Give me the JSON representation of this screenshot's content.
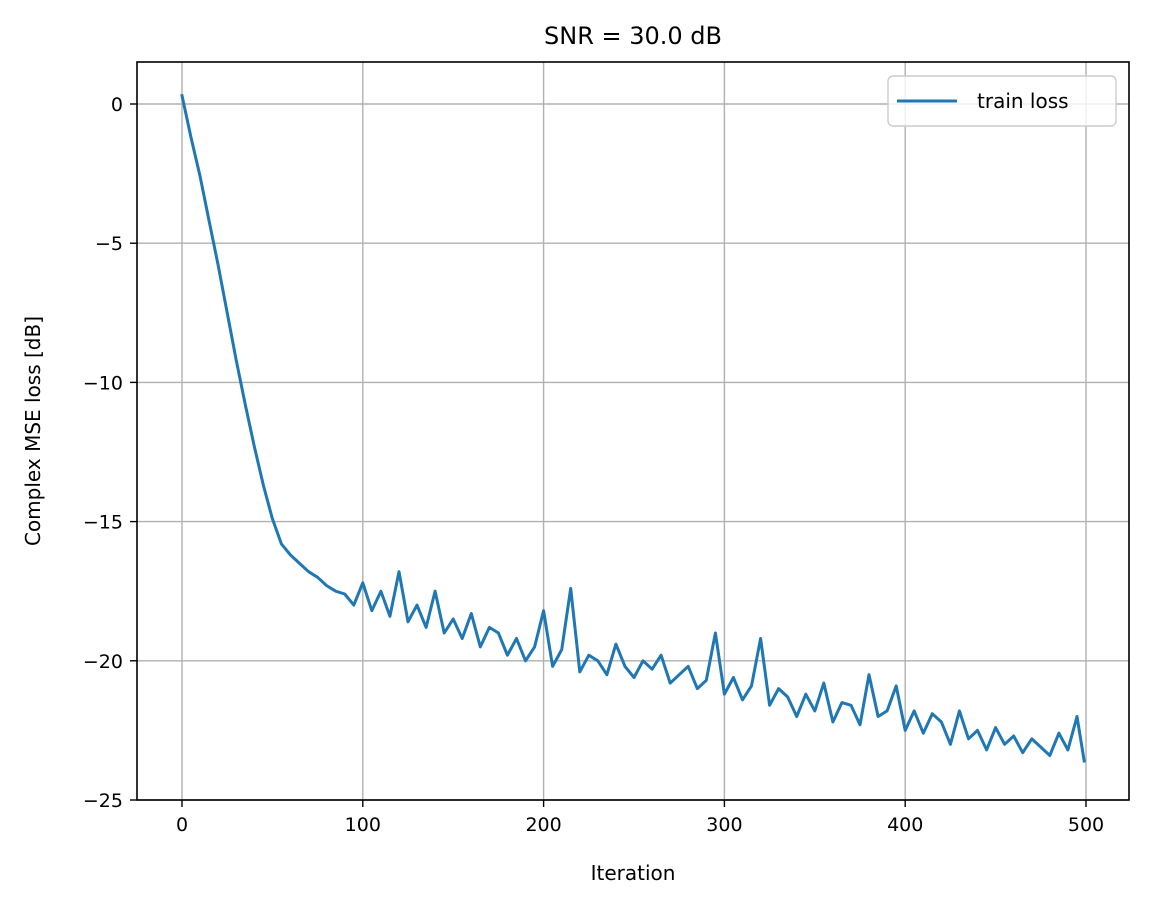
{
  "chart_data": {
    "type": "line",
    "title": "SNR = 30.0 dB",
    "xlabel": "Iteration",
    "ylabel": "Complex MSE loss [dB]",
    "xlim": [
      -25,
      525
    ],
    "ylim": [
      -25,
      1.5
    ],
    "xticks": [
      0,
      100,
      200,
      300,
      400,
      500
    ],
    "yticks": [
      0,
      -5,
      -10,
      -15,
      -20,
      -25
    ],
    "xtick_labels": [
      "0",
      "100",
      "200",
      "300",
      "400",
      "500"
    ],
    "ytick_labels": [
      "0",
      "−5",
      "−10",
      "−15",
      "−20",
      "−25"
    ],
    "grid": true,
    "legend_position": "upper right",
    "series": [
      {
        "name": "train loss",
        "color": "#1f77b4",
        "x": [
          0,
          5,
          10,
          15,
          20,
          25,
          30,
          35,
          40,
          45,
          50,
          55,
          60,
          65,
          70,
          75,
          80,
          85,
          90,
          95,
          100,
          105,
          110,
          115,
          120,
          125,
          130,
          135,
          140,
          145,
          150,
          155,
          160,
          165,
          170,
          175,
          180,
          185,
          190,
          195,
          200,
          205,
          210,
          215,
          220,
          225,
          230,
          235,
          240,
          245,
          250,
          255,
          260,
          265,
          270,
          275,
          280,
          285,
          290,
          295,
          300,
          305,
          310,
          315,
          320,
          325,
          330,
          335,
          340,
          345,
          350,
          355,
          360,
          365,
          370,
          375,
          380,
          385,
          390,
          395,
          400,
          405,
          410,
          415,
          420,
          425,
          430,
          435,
          440,
          445,
          450,
          455,
          460,
          465,
          470,
          475,
          480,
          485,
          490,
          495,
          499
        ],
        "values": [
          0.3,
          -1.2,
          -2.6,
          -4.2,
          -5.8,
          -7.5,
          -9.2,
          -10.8,
          -12.3,
          -13.7,
          -14.9,
          -15.8,
          -16.2,
          -16.5,
          -16.8,
          -17.0,
          -17.3,
          -17.5,
          -17.6,
          -18.0,
          -17.2,
          -18.2,
          -17.5,
          -18.4,
          -16.8,
          -18.6,
          -18.0,
          -18.8,
          -17.5,
          -19.0,
          -18.5,
          -19.2,
          -18.3,
          -19.5,
          -18.8,
          -19.0,
          -19.8,
          -19.2,
          -20.0,
          -19.5,
          -18.2,
          -20.2,
          -19.6,
          -17.4,
          -20.4,
          -19.8,
          -20.0,
          -20.5,
          -19.4,
          -20.2,
          -20.6,
          -20.0,
          -20.3,
          -19.8,
          -20.8,
          -20.5,
          -20.2,
          -21.0,
          -20.7,
          -19.0,
          -21.2,
          -20.6,
          -21.4,
          -20.9,
          -19.2,
          -21.6,
          -21.0,
          -21.3,
          -22.0,
          -21.2,
          -21.8,
          -20.8,
          -22.2,
          -21.5,
          -21.6,
          -22.3,
          -20.5,
          -22.0,
          -21.8,
          -20.9,
          -22.5,
          -21.8,
          -22.6,
          -21.9,
          -22.2,
          -23.0,
          -21.8,
          -22.8,
          -22.5,
          -23.2,
          -22.4,
          -23.0,
          -22.7,
          -23.3,
          -22.8,
          -23.1,
          -23.4,
          -22.6,
          -23.2,
          -22.0,
          -23.6
        ]
      }
    ]
  },
  "legend": {
    "label": "train loss"
  }
}
